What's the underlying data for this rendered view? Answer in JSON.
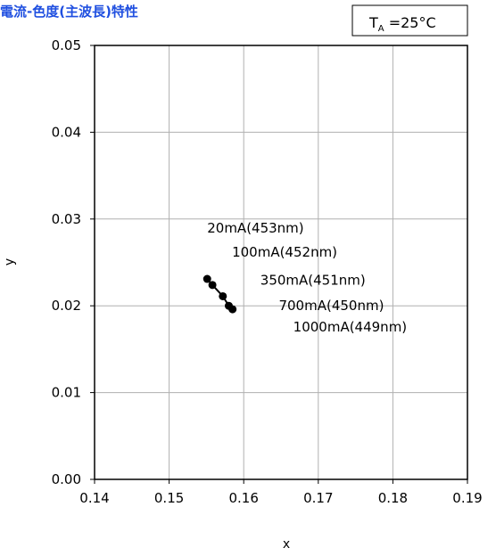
{
  "chart_data": {
    "type": "scatter",
    "title": "電流-色度(主波長)特性",
    "xlabel": "x",
    "ylabel": "y",
    "xlim": [
      0.14,
      0.19
    ],
    "ylim": [
      0.0,
      0.05
    ],
    "x_ticks": [
      "0.14",
      "0.15",
      "0.16",
      "0.17",
      "0.18",
      "0.19"
    ],
    "y_ticks": [
      "0.00",
      "0.01",
      "0.02",
      "0.03",
      "0.04",
      "0.05"
    ],
    "grid": true,
    "connected": true,
    "series": [
      {
        "points": [
          {
            "x": 0.1551,
            "y": 0.0231,
            "label": "20mA(453nm)"
          },
          {
            "x": 0.1558,
            "y": 0.0224,
            "label": "100mA(452nm)"
          },
          {
            "x": 0.1572,
            "y": 0.0211,
            "label": "350mA(451nm)"
          },
          {
            "x": 0.158,
            "y": 0.02,
            "label": "700mA(450nm)"
          },
          {
            "x": 0.1585,
            "y": 0.0196,
            "label": "1000mA(449nm)"
          }
        ]
      }
    ],
    "condition": {
      "symbol": "T",
      "subscript": "A",
      "value": " =25°C"
    }
  },
  "colors": {
    "title": "#1f4fe0",
    "grid": "#b0b0b0",
    "axis": "#000000",
    "marker": "#000000"
  }
}
